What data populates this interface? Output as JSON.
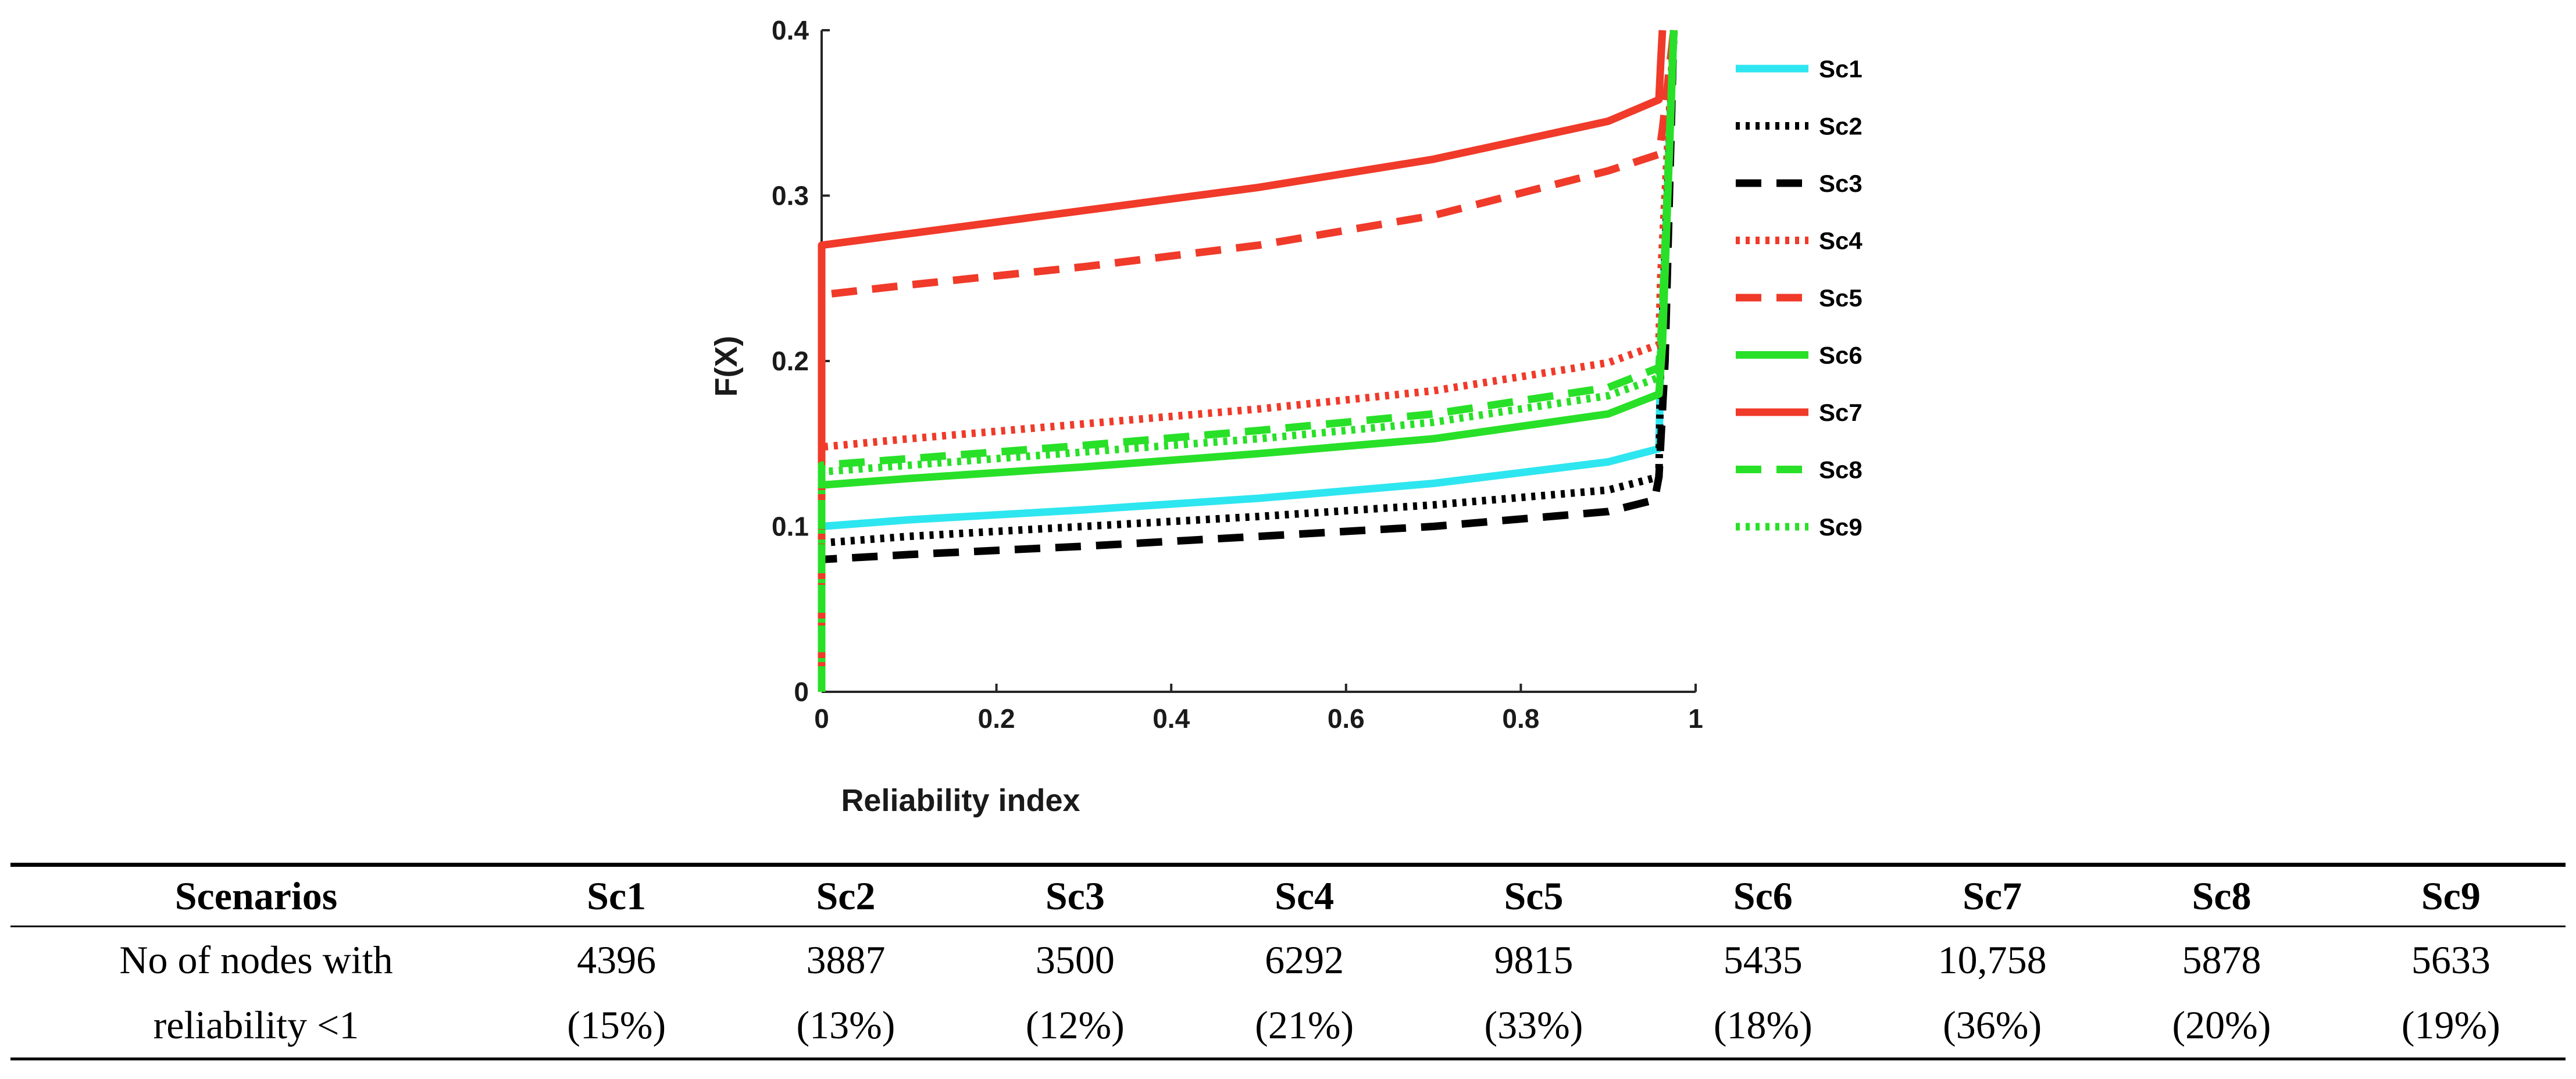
{
  "chart_data": {
    "type": "line",
    "title": "",
    "xlabel": "Reliability index",
    "ylabel": "F(X)",
    "xlim": [
      0,
      1
    ],
    "ylim": [
      0,
      0.4
    ],
    "xticks": [
      "0",
      "0.2",
      "0.4",
      "0.6",
      "0.8",
      "1"
    ],
    "yticks": [
      "0",
      "0.1",
      "0.2",
      "0.3",
      "0.4"
    ],
    "grid": false,
    "legend_position": "right",
    "series": [
      {
        "name": "Sc1",
        "color": "#2ee6f0",
        "style": "solid",
        "x": [
          0,
          0,
          0.1,
          0.3,
          0.5,
          0.7,
          0.9,
          0.958,
          0.96,
          0.975
        ],
        "y": [
          0,
          0.1,
          0.104,
          0.11,
          0.117,
          0.126,
          0.139,
          0.147,
          0.2,
          0.4
        ]
      },
      {
        "name": "Sc2",
        "color": "#000000",
        "style": "dotted",
        "x": [
          0,
          0,
          0.1,
          0.3,
          0.5,
          0.7,
          0.9,
          0.958,
          0.96,
          0.975
        ],
        "y": [
          0,
          0.09,
          0.094,
          0.1,
          0.106,
          0.113,
          0.122,
          0.13,
          0.2,
          0.4
        ]
      },
      {
        "name": "Sc3",
        "color": "#000000",
        "style": "dashed",
        "x": [
          0,
          0,
          0.1,
          0.3,
          0.5,
          0.7,
          0.9,
          0.953,
          0.958,
          0.965,
          0.975
        ],
        "y": [
          0,
          0.08,
          0.083,
          0.088,
          0.094,
          0.1,
          0.109,
          0.116,
          0.13,
          0.2,
          0.4
        ]
      },
      {
        "name": "Sc4",
        "color": "#f03a2a",
        "style": "dotted",
        "x": [
          0,
          0,
          0.1,
          0.3,
          0.5,
          0.7,
          0.9,
          0.958,
          0.96,
          0.975
        ],
        "y": [
          0,
          0.148,
          0.153,
          0.162,
          0.171,
          0.182,
          0.199,
          0.21,
          0.25,
          0.4
        ]
      },
      {
        "name": "Sc5",
        "color": "#f03a2a",
        "style": "dashed",
        "x": [
          0,
          0,
          0.1,
          0.3,
          0.5,
          0.7,
          0.9,
          0.958,
          0.962,
          0.975
        ],
        "y": [
          0,
          0.24,
          0.246,
          0.257,
          0.27,
          0.288,
          0.315,
          0.325,
          0.34,
          0.4
        ]
      },
      {
        "name": "Sc6",
        "color": "#28e028",
        "style": "solid",
        "x": [
          0,
          0,
          0.1,
          0.3,
          0.5,
          0.7,
          0.9,
          0.958,
          0.962,
          0.975
        ],
        "y": [
          0,
          0.125,
          0.129,
          0.136,
          0.144,
          0.153,
          0.168,
          0.18,
          0.21,
          0.4
        ]
      },
      {
        "name": "Sc7",
        "color": "#f03a2a",
        "style": "solid",
        "x": [
          0,
          0,
          0.1,
          0.3,
          0.5,
          0.7,
          0.9,
          0.958,
          0.96,
          0.962
        ],
        "y": [
          0,
          0.27,
          0.277,
          0.291,
          0.305,
          0.322,
          0.345,
          0.358,
          0.38,
          0.4
        ]
      },
      {
        "name": "Sc8",
        "color": "#28e028",
        "style": "dashed",
        "x": [
          0,
          0,
          0.1,
          0.3,
          0.5,
          0.7,
          0.9,
          0.958,
          0.962,
          0.975
        ],
        "y": [
          0,
          0.137,
          0.141,
          0.149,
          0.158,
          0.168,
          0.184,
          0.196,
          0.23,
          0.4
        ]
      },
      {
        "name": "Sc9",
        "color": "#28e028",
        "style": "dotted",
        "x": [
          0,
          0,
          0.1,
          0.3,
          0.5,
          0.7,
          0.9,
          0.958,
          0.962,
          0.975
        ],
        "y": [
          0,
          0.133,
          0.137,
          0.145,
          0.153,
          0.163,
          0.179,
          0.19,
          0.22,
          0.4
        ]
      }
    ]
  },
  "table": {
    "headers": [
      "Scenarios",
      "Sc1",
      "Sc2",
      "Sc3",
      "Sc4",
      "Sc5",
      "Sc6",
      "Sc7",
      "Sc8",
      "Sc9"
    ],
    "row_label_line1": "No of nodes with",
    "row_label_line2": "reliability <1",
    "counts": [
      "4396",
      "3887",
      "3500",
      "6292",
      "9815",
      "5435",
      "10,758",
      "5878",
      "5633"
    ],
    "percents": [
      "(15%)",
      "(13%)",
      "(12%)",
      "(21%)",
      "(33%)",
      "(18%)",
      "(36%)",
      "(20%)",
      "(19%)"
    ]
  }
}
